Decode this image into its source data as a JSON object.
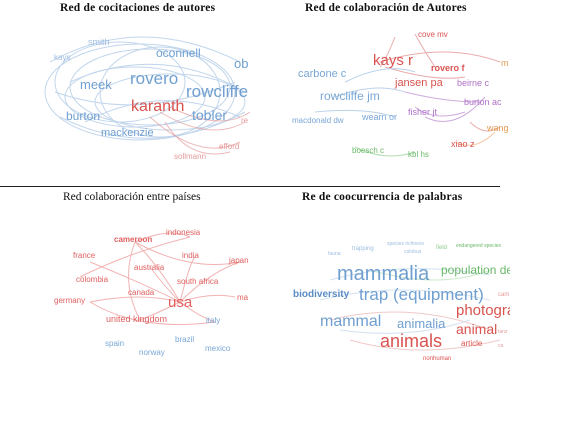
{
  "panels": {
    "cocitation": {
      "title": "Red de cocitaciones de autores",
      "colors": {
        "blue": "#6f9fd0",
        "red": "#d9534f",
        "light_blue": "#9dbde0",
        "light_red": "#e59a9a"
      },
      "labels": [
        "smith",
        "kays",
        "oconnell",
        "ob",
        "rovero",
        "rowcliffe",
        "meek",
        "karanth",
        "burton",
        "tobler",
        "mackenzie",
        "efford",
        "sollmann",
        "re"
      ]
    },
    "coauthor": {
      "title": "Red de colaboración de Autores",
      "colors": {
        "blue": "#7aa7d6",
        "red": "#d9534f",
        "purple": "#b070c8",
        "green": "#6ab86a",
        "orange": "#e39a50"
      },
      "labels": [
        "cove mv",
        "kays r",
        "rovero f",
        "m",
        "carbone c",
        "jansen pa",
        "beirne c",
        "rowcliffe jm",
        "burton ac",
        "fisher jt",
        "macdonald dw",
        "wearn or",
        "wang",
        "xiao z",
        "boesch c",
        "kbl hs"
      ]
    },
    "countries": {
      "title": "Red colaboración entre países",
      "colors": {
        "red": "#e06060",
        "blue": "#7aa7d6",
        "light_red": "#f0a0a0"
      },
      "labels": [
        "indonesia",
        "cameroon",
        "france",
        "india",
        "japan",
        "australia",
        "colombia",
        "south africa",
        "canada",
        "ma",
        "germany",
        "usa",
        "united kingdom",
        "italy",
        "brazil",
        "spain",
        "norway",
        "mexico"
      ]
    },
    "keywords": {
      "title": "Re de coocurrencia de palabras",
      "colors": {
        "blue": "#6f9fd0",
        "red": "#d9534f",
        "green": "#6ab86a"
      },
      "labels": [
        "trapping",
        "species richness",
        "colobus",
        "field",
        "endangered species",
        "fauna",
        "mammalia",
        "population de",
        "biodiversity",
        "trap (equipment)",
        "photogra",
        "mammal",
        "animalia",
        "animal",
        "animals",
        "article",
        "nonhuman",
        "cam",
        "tanz",
        "ca"
      ]
    }
  }
}
